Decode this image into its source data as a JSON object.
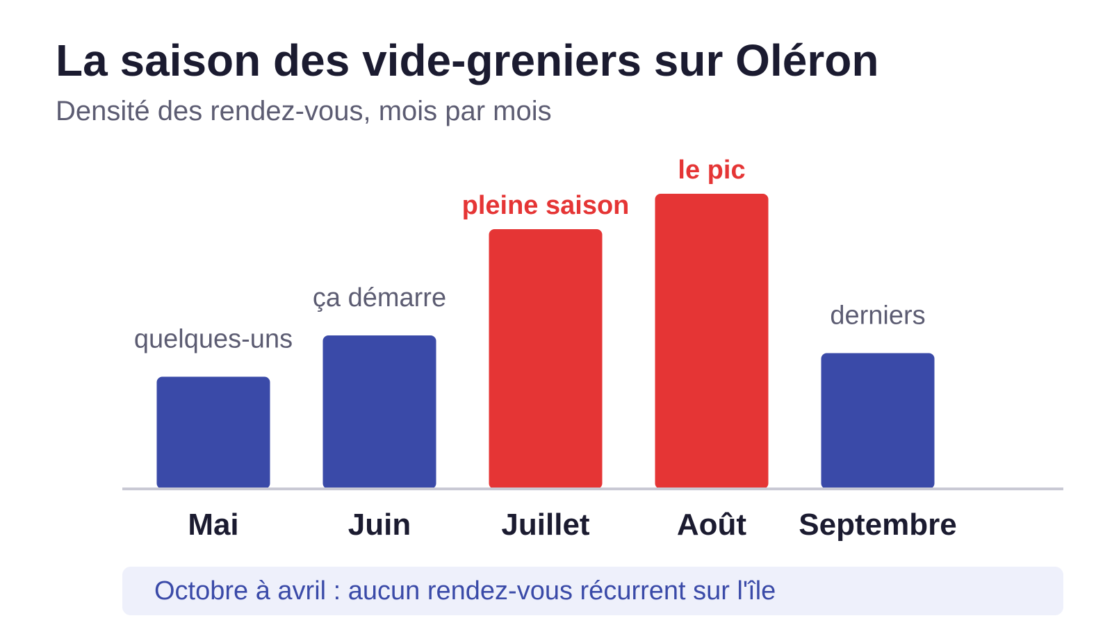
{
  "colors": {
    "title": "#1b1b30",
    "subtitle": "#5c5c72",
    "bar_default": "#3a4aa8",
    "bar_highlight": "#e53535",
    "baseline": "#c9c9d4",
    "footnote_bg": "#eef0fb",
    "footnote_text": "#3a4aa8"
  },
  "chart_data": {
    "type": "bar",
    "title": "La saison des vide-greniers sur Oléron",
    "subtitle": "Densité des rendez-vous, mois par mois",
    "xlabel": "",
    "ylabel": "",
    "ylim": [
      0,
      100
    ],
    "grid": false,
    "categories": [
      "Mai",
      "Juin",
      "Juillet",
      "Août",
      "Septembre"
    ],
    "values": [
      38,
      52,
      88,
      100,
      46
    ],
    "highlight": [
      false,
      false,
      true,
      true,
      false
    ],
    "annotations": [
      "quelques-uns",
      "ça démarre",
      "pleine saison",
      "le pic",
      "derniers"
    ]
  },
  "footnote": "Octobre à avril : aucun rendez-vous récurrent sur l'île"
}
